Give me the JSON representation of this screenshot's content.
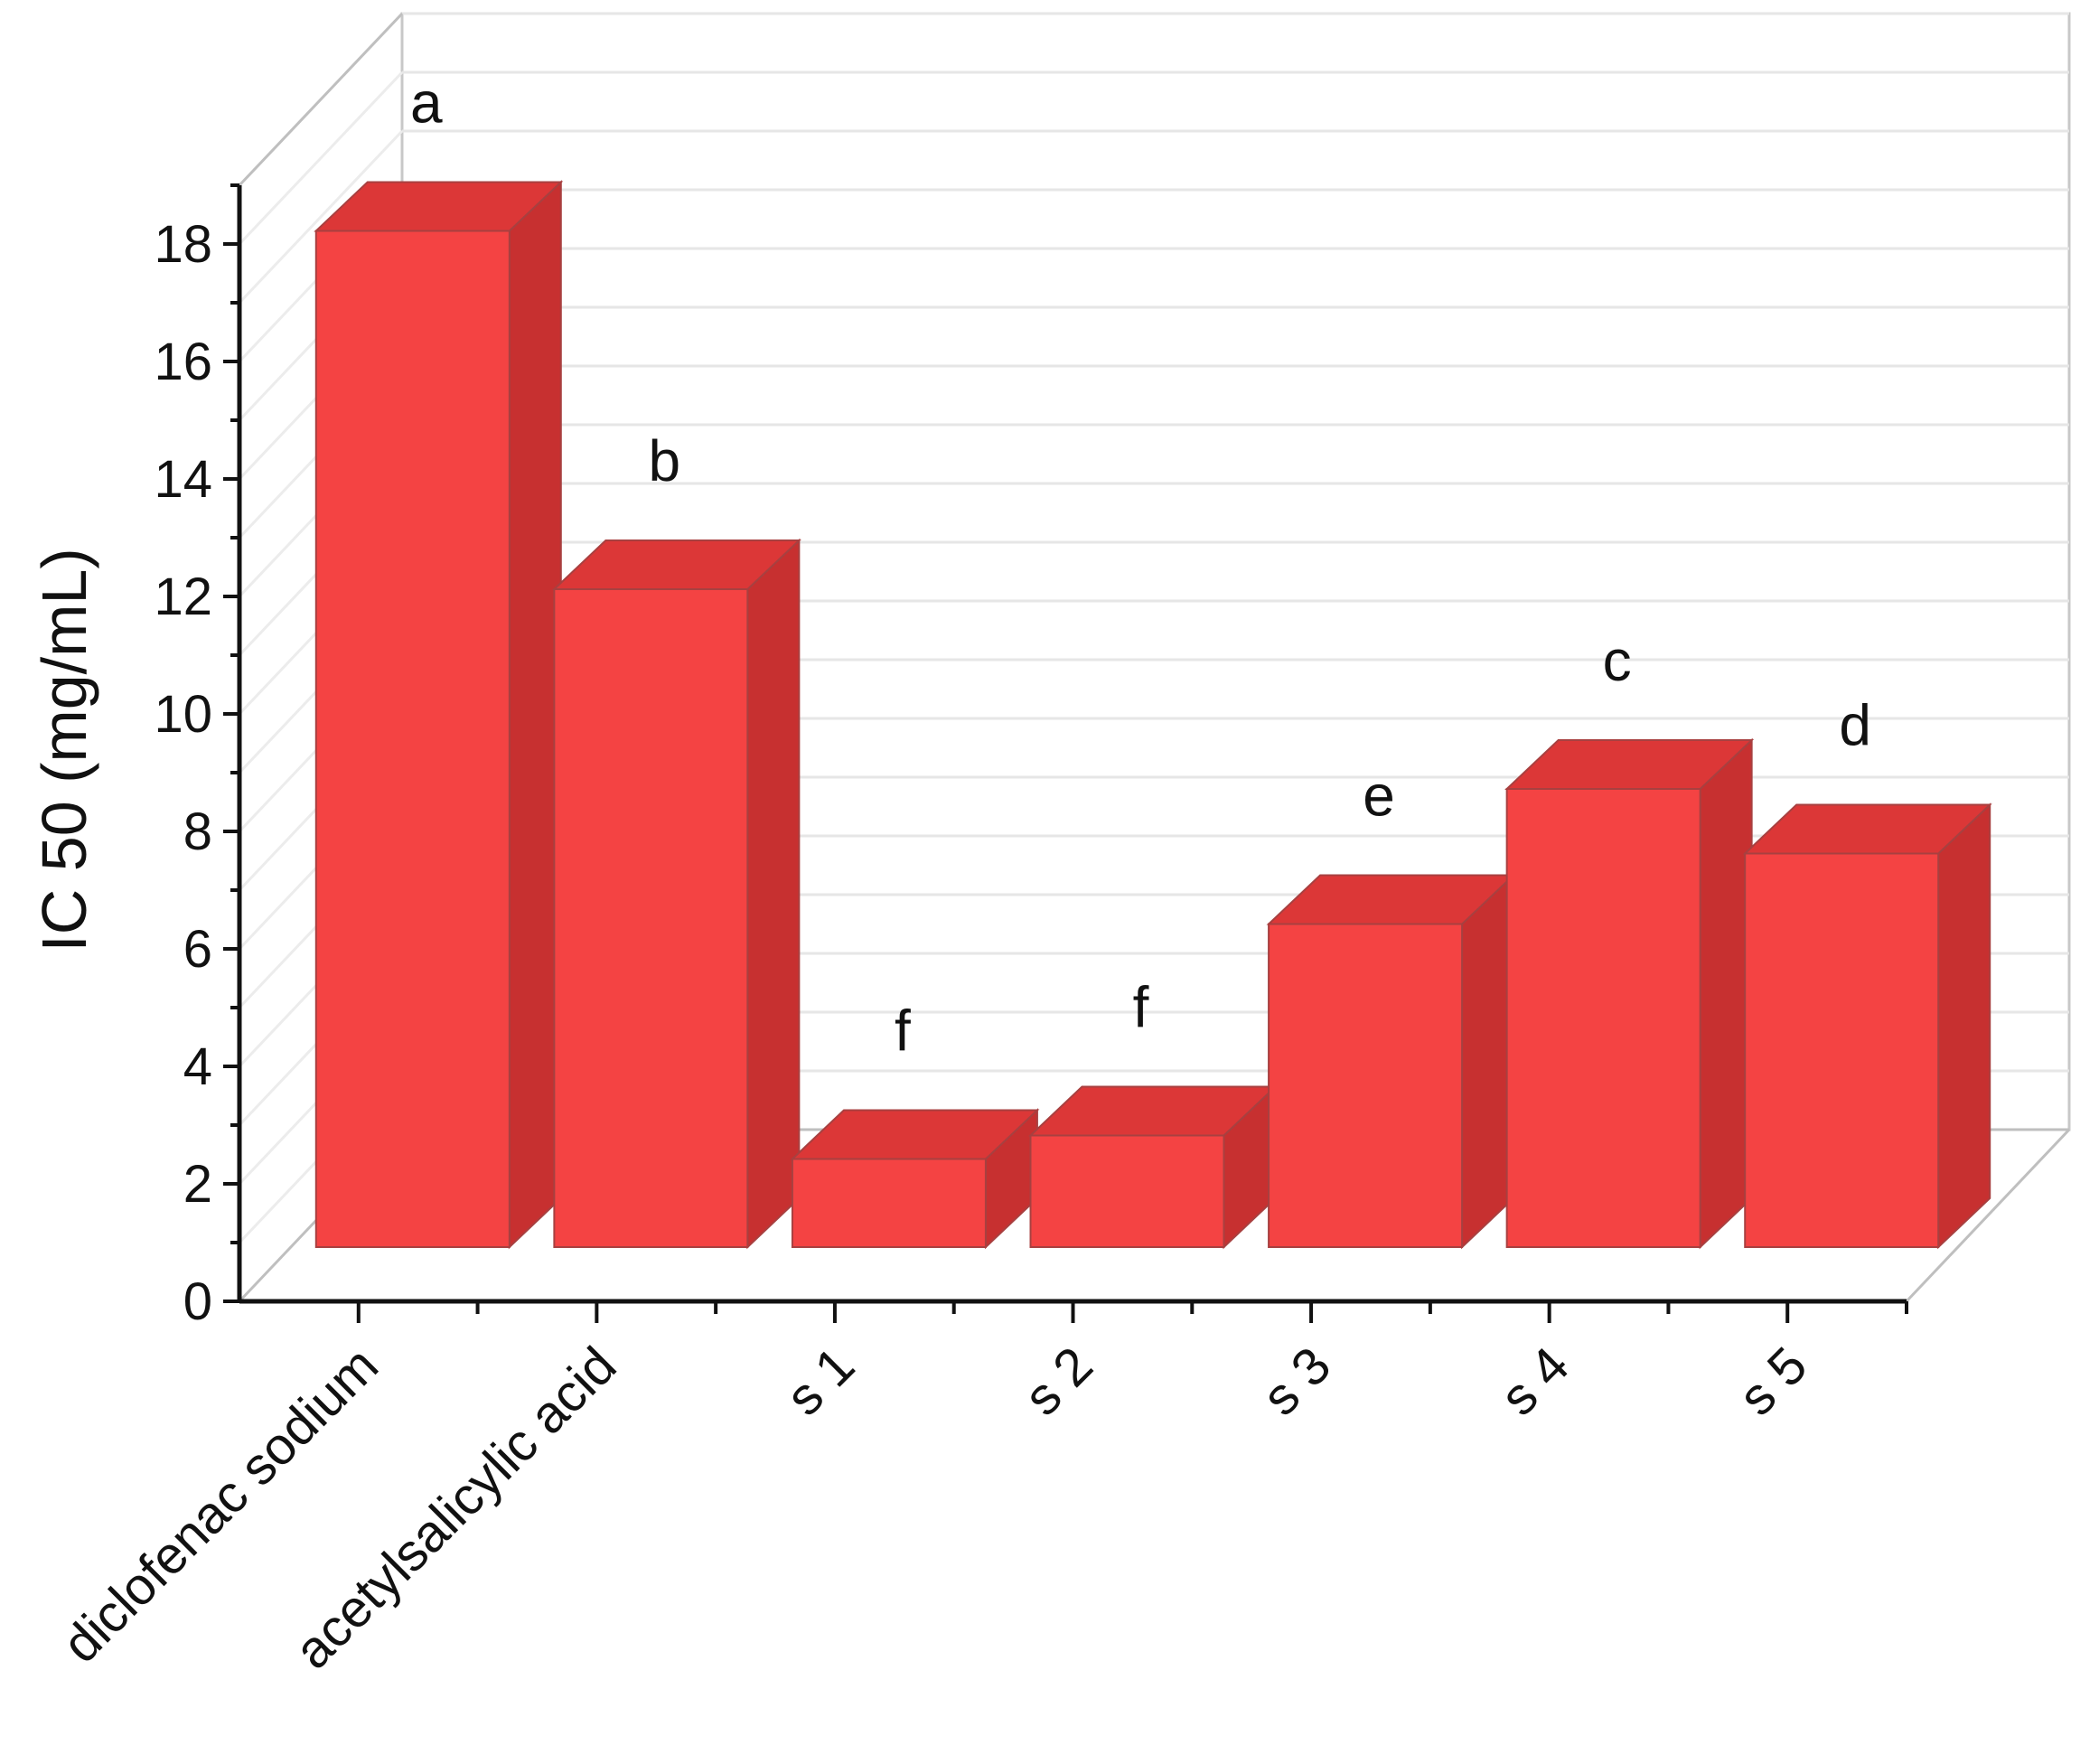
{
  "chart_data": {
    "type": "bar",
    "title": "",
    "xlabel": "",
    "ylabel": "IC 50 (mg/mL)",
    "ylim": [
      0,
      19
    ],
    "yticks": [
      0,
      2,
      4,
      6,
      8,
      10,
      12,
      14,
      16,
      18
    ],
    "grid": true,
    "style": "3d",
    "bar_color": "#f44343",
    "bar_top_color": "#dc3737",
    "bar_side_color": "#c73030",
    "categories": [
      "diclofenac sodium",
      "acetylsalicylic acid",
      "s 1",
      "s 2",
      "s 3",
      "s 4",
      "s 5"
    ],
    "values": [
      17.3,
      11.2,
      1.5,
      1.9,
      5.5,
      7.8,
      6.7
    ],
    "significance_labels": [
      "a",
      "b",
      "f",
      "f",
      "e",
      "c",
      "d"
    ]
  }
}
